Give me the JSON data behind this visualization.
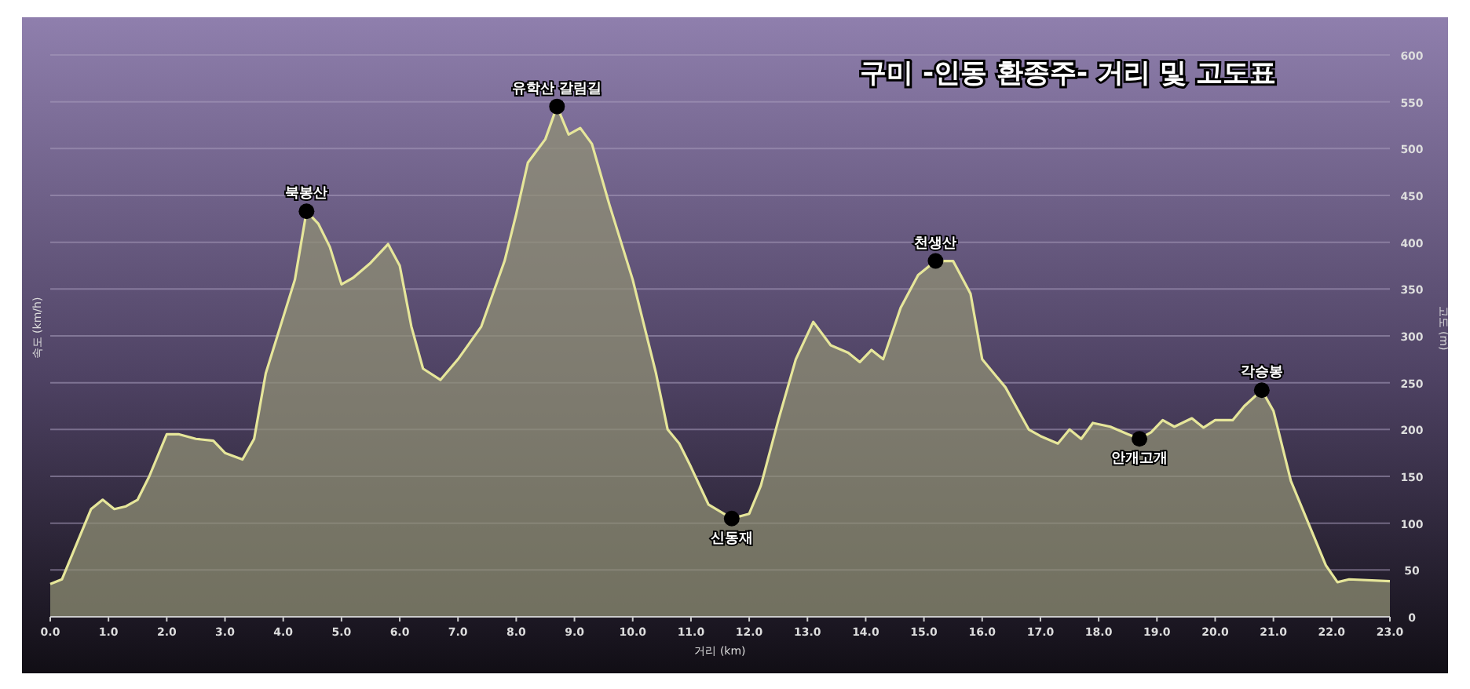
{
  "chart_data": {
    "type": "area",
    "title": "구미 -인동 환종주- 거리 및 고도표",
    "xlabel": "거리 (km)",
    "ylabel": "속도 (km/h)",
    "y2label": "고도 (m)",
    "xlim": [
      0,
      23
    ],
    "xticks": [
      {
        "value": 0,
        "label": "0.0"
      },
      {
        "value": 1,
        "label": "1.0"
      },
      {
        "value": 2,
        "label": "2.0"
      },
      {
        "value": 3,
        "label": "3.0"
      },
      {
        "value": 4,
        "label": "4.0"
      },
      {
        "value": 5,
        "label": "5.0"
      },
      {
        "value": 6,
        "label": "6.0"
      },
      {
        "value": 7,
        "label": "7.0"
      },
      {
        "value": 8,
        "label": "8.0"
      },
      {
        "value": 9,
        "label": "9.0"
      },
      {
        "value": 10,
        "label": "10.0"
      },
      {
        "value": 11,
        "label": "11.0"
      },
      {
        "value": 12,
        "label": "12.0"
      },
      {
        "value": 13,
        "label": "13.0"
      },
      {
        "value": 14,
        "label": "14.0"
      },
      {
        "value": 15,
        "label": "15.0"
      },
      {
        "value": 16,
        "label": "16.0"
      },
      {
        "value": 17,
        "label": "17.0"
      },
      {
        "value": 18,
        "label": "18.0"
      },
      {
        "value": 19,
        "label": "19.0"
      },
      {
        "value": 20,
        "label": "20.0"
      },
      {
        "value": 21,
        "label": "21.0"
      },
      {
        "value": 22,
        "label": "22.0"
      },
      {
        "value": 23,
        "label": "23.0"
      }
    ],
    "ylim": [
      0,
      600
    ],
    "yticks": [
      0,
      50,
      100,
      150,
      200,
      250,
      300,
      350,
      400,
      450,
      500,
      550,
      600
    ],
    "grid": "y",
    "x": [
      0,
      0.2,
      0.5,
      0.7,
      0.9,
      1.1,
      1.3,
      1.5,
      1.7,
      2.0,
      2.2,
      2.5,
      2.8,
      3.0,
      3.3,
      3.5,
      3.7,
      4.0,
      4.2,
      4.4,
      4.6,
      4.8,
      5.0,
      5.2,
      5.5,
      5.8,
      6.0,
      6.2,
      6.4,
      6.7,
      7.0,
      7.4,
      7.8,
      8.0,
      8.2,
      8.5,
      8.7,
      8.9,
      9.1,
      9.3,
      9.6,
      10.0,
      10.4,
      10.6,
      10.8,
      11.0,
      11.3,
      11.7,
      12.0,
      12.2,
      12.5,
      12.8,
      13.1,
      13.4,
      13.7,
      13.9,
      14.1,
      14.3,
      14.6,
      14.9,
      15.2,
      15.5,
      15.8,
      16.0,
      16.4,
      16.8,
      17.0,
      17.3,
      17.5,
      17.7,
      17.9,
      18.2,
      18.5,
      18.7,
      18.9,
      19.1,
      19.3,
      19.6,
      19.8,
      20.0,
      20.3,
      20.5,
      20.8,
      21.0,
      21.3,
      21.6,
      21.9,
      22.1,
      22.3,
      23.0
    ],
    "series": [
      {
        "color": "#e6e69a",
        "values": [
          35,
          40,
          85,
          115,
          125,
          115,
          118,
          125,
          150,
          195,
          195,
          190,
          188,
          175,
          168,
          190,
          260,
          320,
          360,
          433,
          420,
          395,
          355,
          362,
          378,
          398,
          375,
          310,
          265,
          253,
          275,
          310,
          380,
          430,
          485,
          510,
          545,
          515,
          522,
          505,
          440,
          360,
          260,
          200,
          185,
          160,
          120,
          105,
          110,
          140,
          210,
          275,
          315,
          290,
          282,
          272,
          285,
          275,
          330,
          365,
          380,
          380,
          345,
          275,
          245,
          200,
          193,
          185,
          200,
          190,
          207,
          203,
          195,
          190,
          197,
          210,
          203,
          212,
          202,
          210,
          210,
          225,
          242,
          220,
          145,
          100,
          55,
          37,
          40,
          38
        ]
      }
    ],
    "annotations": [
      {
        "text": "북봉산",
        "x": 4.4,
        "y": 433
      },
      {
        "text": "유학산 갈림길",
        "x": 8.7,
        "y": 545
      },
      {
        "text": "신동재",
        "x": 11.7,
        "y": 105
      },
      {
        "text": "천생산",
        "x": 15.2,
        "y": 380
      },
      {
        "text": "안개고개",
        "x": 18.7,
        "y": 190
      },
      {
        "text": "각승봉",
        "x": 20.8,
        "y": 242
      }
    ]
  }
}
